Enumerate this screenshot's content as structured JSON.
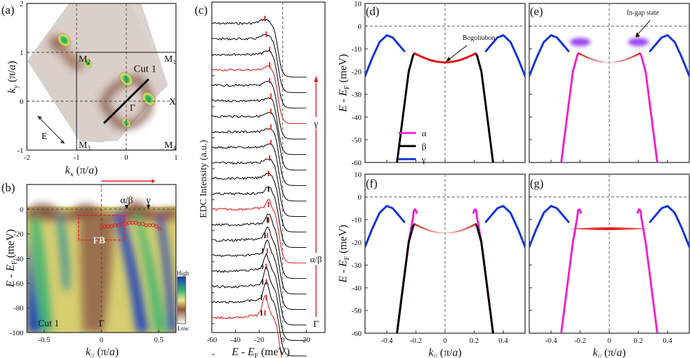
{
  "figure": {
    "panel_labels": [
      "(a)",
      "(b)",
      "(c)",
      "(d)",
      "(e)",
      "(f)",
      "(g)"
    ]
  },
  "chart_data": [
    {
      "panel": "(a)",
      "type": "heatmap",
      "title": "",
      "xlabel": "k_x (π/a)",
      "ylabel": "k_y (π/a)",
      "xlim": [
        -2,
        1
      ],
      "ylim": [
        -1,
        2
      ],
      "xticks": [
        "-2",
        "-1",
        "0",
        "1"
      ],
      "yticks": [
        "-1",
        "0",
        "1",
        "2"
      ],
      "point_labels": [
        {
          "text": "M2",
          "sub": "2",
          "base": "M",
          "x": -1,
          "y": 1
        },
        {
          "text": "M1",
          "sub": "1",
          "base": "M",
          "x": 1,
          "y": 1
        },
        {
          "text": "M3",
          "sub": "3",
          "base": "M",
          "x": -1,
          "y": -1
        },
        {
          "text": "M4",
          "sub": "4",
          "base": "M",
          "x": 1,
          "y": -1
        },
        {
          "text": "X",
          "base": "X",
          "sub": "",
          "x": 1,
          "y": 0
        },
        {
          "text": "Γ",
          "base": "Γ",
          "sub": "",
          "x": 0,
          "y": 0
        }
      ],
      "cut": {
        "label": "Cut 1",
        "from": [
          -0.45,
          -0.45
        ],
        "to": [
          0.45,
          0.45
        ]
      },
      "polarization_label": "E",
      "hotspots": [
        {
          "x": -1.25,
          "y": 1.25,
          "intensity": "high"
        },
        {
          "x": -0.78,
          "y": 0.78,
          "intensity": "medium"
        },
        {
          "x": 0.0,
          "y": 0.45,
          "intensity": "high"
        },
        {
          "x": 0.45,
          "y": 0.05,
          "intensity": "high"
        },
        {
          "x": 0.0,
          "y": -0.45,
          "intensity": "medium"
        }
      ]
    },
    {
      "panel": "(b)",
      "type": "heatmap",
      "xlabel": "k_// (π/a)",
      "ylabel": "E - E_F (meV)",
      "xlim": [
        -0.65,
        0.65
      ],
      "ylim": [
        -100,
        20
      ],
      "xticks": [
        "-0.5",
        "0",
        "0.5"
      ],
      "yticks": [
        "0",
        "-20",
        "-40",
        "-60",
        "-80",
        "-100"
      ],
      "band_labels": [
        {
          "text": "α/β",
          "k": 0.22
        },
        {
          "text": "γ",
          "k": 0.41
        }
      ],
      "box_label": "FB",
      "box": {
        "k": [
          -0.2,
          0.2
        ],
        "E": [
          -5,
          -25
        ]
      },
      "cut_label": "Cut 1",
      "gamma_label": "Γ",
      "colorbar": {
        "high": "High",
        "low": "Low"
      },
      "flat_band_points": {
        "k": [
          0.0,
          0.03,
          0.06,
          0.09,
          0.12,
          0.15,
          0.18,
          0.21,
          0.24,
          0.27,
          0.3,
          0.33,
          0.36,
          0.39,
          0.42,
          0.45,
          0.48,
          0.51
        ],
        "E": [
          -15,
          -14,
          -14,
          -14,
          -13,
          -13,
          -12,
          -12,
          -11,
          -11,
          -11,
          -12,
          -12,
          -13,
          -13,
          -13,
          -14,
          -16
        ]
      }
    },
    {
      "panel": "(c)",
      "type": "line",
      "xlabel": "E - E_F (meV)",
      "ylabel": "EDC Intensity (a.u.)",
      "xlim": [
        -60,
        20
      ],
      "xticks": [
        "-60",
        "-40",
        "-20",
        "0",
        "20"
      ],
      "arrow_labels": [
        "γ",
        "α/β",
        "Γ"
      ],
      "n_curves": 20,
      "red_curves": [
        3,
        12,
        19
      ],
      "peak_markers_red": [
        -15,
        -14,
        -11,
        -11,
        -11,
        -10,
        -10,
        -10,
        -10,
        -11,
        -12,
        -12,
        -12,
        -12,
        -13,
        -13,
        -14,
        -14,
        -14,
        -15
      ],
      "peak_markers_black": [
        null,
        null,
        null,
        null,
        null,
        null,
        null,
        null,
        null,
        null,
        null,
        -12,
        null,
        -13,
        -15,
        -17,
        -17,
        -17,
        -18,
        -18
      ]
    },
    {
      "panel": "(d)",
      "type": "line",
      "ylabel": "E - E_F (meV)",
      "xlim": [
        -0.55,
        0.55
      ],
      "ylim": [
        -60,
        10
      ],
      "yticks": [
        "10",
        "0",
        "-10",
        "-20",
        "-30",
        "-40",
        "-50",
        "-60"
      ],
      "annotation": "Bogoliubon",
      "legend": {
        "position": "bottom-left",
        "entries": [
          {
            "label": "α",
            "color": "#ee22cc"
          },
          {
            "label": "β",
            "color": "#000000"
          },
          {
            "label": "γ",
            "color": "#1133dd"
          }
        ]
      },
      "series": [
        {
          "name": "γ",
          "color": "#1133dd",
          "segments": [
            {
              "k": [
                -0.55,
                -0.5,
                -0.45,
                -0.4,
                -0.36,
                -0.32,
                -0.28
              ],
              "E": [
                -22,
                -14,
                -7,
                -4,
                -5,
                -8,
                -11
              ]
            },
            {
              "k": [
                0.28,
                0.32,
                0.36,
                0.4,
                0.45,
                0.5,
                0.55
              ],
              "E": [
                -11,
                -8,
                -5,
                -4,
                -7,
                -14,
                -22
              ]
            }
          ]
        },
        {
          "name": "β",
          "color": "#000000",
          "segments": [
            {
              "k": [
                -0.33,
                -0.29,
                -0.25,
                -0.22,
                -0.21
              ],
              "E": [
                -60,
                -40,
                -20,
                -13,
                -12
              ]
            },
            {
              "k": [
                0.21,
                0.22,
                0.25,
                0.29,
                0.33
              ],
              "E": [
                -12,
                -13,
                -20,
                -40,
                -60
              ]
            }
          ]
        },
        {
          "name": "Bogoliubon",
          "color": "#dd1111",
          "segments": [
            {
              "k": [
                -0.21,
                -0.15,
                -0.1,
                -0.05,
                0,
                0.05,
                0.1,
                0.15,
                0.21
              ],
              "E": [
                -12,
                -13.8,
                -15,
                -15.7,
                -16,
                -15.7,
                -15,
                -13.8,
                -12
              ]
            }
          ]
        }
      ]
    },
    {
      "panel": "(e)",
      "type": "line",
      "xlim": [
        -0.55,
        0.55
      ],
      "ylim": [
        -60,
        10
      ],
      "annotation": "In-gap state",
      "in_gap_states": [
        {
          "k": -0.2,
          "E": -7
        },
        {
          "k": 0.2,
          "E": -7
        }
      ],
      "series": [
        {
          "name": "γ",
          "color": "#1133dd",
          "segments": [
            {
              "k": [
                -0.55,
                -0.5,
                -0.45,
                -0.4,
                -0.36,
                -0.32,
                -0.28
              ],
              "E": [
                -22,
                -14,
                -7,
                -4,
                -5,
                -8,
                -11
              ]
            },
            {
              "k": [
                0.28,
                0.32,
                0.36,
                0.4,
                0.45,
                0.5,
                0.55
              ],
              "E": [
                -11,
                -8,
                -5,
                -4,
                -7,
                -14,
                -22
              ]
            }
          ]
        },
        {
          "name": "α",
          "color": "#ee22cc",
          "segments": [
            {
              "k": [
                -0.33,
                -0.29,
                -0.25,
                -0.22,
                -0.21
              ],
              "E": [
                -60,
                -40,
                -20,
                -13,
                -12
              ]
            },
            {
              "k": [
                0.21,
                0.22,
                0.25,
                0.29,
                0.33
              ],
              "E": [
                -12,
                -13,
                -20,
                -40,
                -60
              ]
            }
          ]
        },
        {
          "name": "Bogoliubon",
          "color": "#dd1111",
          "fade": true,
          "segments": [
            {
              "k": [
                -0.21,
                -0.15,
                -0.1,
                -0.05,
                0,
                0.05,
                0.1,
                0.15,
                0.21
              ],
              "E": [
                -12,
                -13.8,
                -15,
                -15.7,
                -16,
                -15.7,
                -15,
                -13.8,
                -12
              ]
            }
          ]
        }
      ]
    },
    {
      "panel": "(f)",
      "type": "line",
      "xlabel": "k_// (π/a)",
      "ylabel": "E - E_F (meV)",
      "xlim": [
        -0.55,
        0.55
      ],
      "ylim": [
        -60,
        10
      ],
      "xticks": [
        "-0.4",
        "-0.2",
        "0",
        "0.2",
        "0.4"
      ],
      "yticks": [
        "10",
        "0",
        "-10",
        "-20",
        "-30",
        "-40",
        "-50",
        "-60"
      ],
      "series": [
        {
          "name": "γ",
          "color": "#1133dd",
          "segments": [
            {
              "k": [
                -0.55,
                -0.5,
                -0.45,
                -0.4,
                -0.36,
                -0.32,
                -0.28
              ],
              "E": [
                -22,
                -14,
                -7,
                -4,
                -5,
                -8,
                -11
              ]
            },
            {
              "k": [
                0.28,
                0.32,
                0.36,
                0.4,
                0.45,
                0.5,
                0.55
              ],
              "E": [
                -11,
                -8,
                -5,
                -4,
                -7,
                -14,
                -22
              ]
            }
          ]
        },
        {
          "name": "α",
          "color": "#ee22cc",
          "segments": [
            {
              "k": [
                -0.33,
                -0.29,
                -0.25,
                -0.22,
                -0.215,
                -0.205,
                -0.195
              ],
              "E": [
                -60,
                -40,
                -20,
                -9,
                -6,
                -5.5,
                -7
              ]
            },
            {
              "k": [
                0.33,
                0.29,
                0.25,
                0.22,
                0.215,
                0.205,
                0.195
              ],
              "E": [
                -60,
                -40,
                -20,
                -9,
                -6,
                -5.5,
                -7
              ]
            }
          ]
        },
        {
          "name": "β",
          "color": "#000000",
          "segments": [
            {
              "k": [
                -0.33,
                -0.29,
                -0.25,
                -0.22,
                -0.21
              ],
              "E": [
                -60,
                -40,
                -20,
                -13,
                -12
              ]
            },
            {
              "k": [
                0.21,
                0.22,
                0.25,
                0.29,
                0.33
              ],
              "E": [
                -12,
                -13,
                -20,
                -40,
                -60
              ]
            }
          ]
        },
        {
          "name": "Bogoliubon",
          "color": "#dd1111",
          "fade": true,
          "segments": [
            {
              "k": [
                -0.21,
                -0.15,
                -0.1,
                -0.05,
                0,
                0.05,
                0.1,
                0.15,
                0.21
              ],
              "E": [
                -12,
                -13.8,
                -15,
                -15.7,
                -16,
                -15.7,
                -15,
                -13.8,
                -12
              ]
            }
          ]
        }
      ]
    },
    {
      "panel": "(g)",
      "type": "line",
      "xlabel": "k_// (π/a)",
      "xlim": [
        -0.55,
        0.55
      ],
      "ylim": [
        -60,
        10
      ],
      "xticks": [
        "-0.4",
        "-0.2",
        "0",
        "0.2",
        "0.4"
      ],
      "flat_band": {
        "k": [
          -0.28,
          0.28
        ],
        "E": -14,
        "color": "#ee1111"
      },
      "series": [
        {
          "name": "γ",
          "color": "#1133dd",
          "segments": [
            {
              "k": [
                -0.55,
                -0.5,
                -0.45,
                -0.4,
                -0.36,
                -0.32,
                -0.28
              ],
              "E": [
                -22,
                -14,
                -7,
                -4,
                -5,
                -8,
                -11
              ]
            },
            {
              "k": [
                0.28,
                0.32,
                0.36,
                0.4,
                0.45,
                0.5,
                0.55
              ],
              "E": [
                -11,
                -8,
                -5,
                -4,
                -7,
                -14,
                -22
              ]
            }
          ]
        },
        {
          "name": "α",
          "color": "#ee22cc",
          "segments": [
            {
              "k": [
                -0.33,
                -0.29,
                -0.25,
                -0.22,
                -0.215,
                -0.205,
                -0.195
              ],
              "E": [
                -60,
                -40,
                -20,
                -9,
                -6,
                -5.5,
                -7
              ]
            },
            {
              "k": [
                0.33,
                0.29,
                0.25,
                0.22,
                0.215,
                0.205,
                0.195
              ],
              "E": [
                -60,
                -40,
                -20,
                -9,
                -6,
                -5.5,
                -7
              ]
            }
          ]
        }
      ]
    }
  ]
}
